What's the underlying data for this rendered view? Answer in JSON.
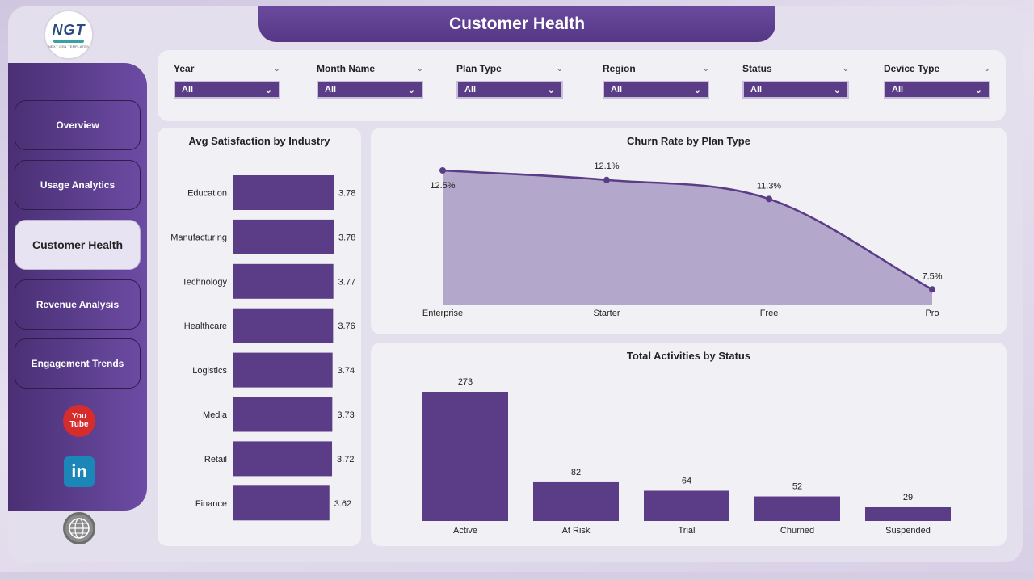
{
  "header": {
    "title": "Customer Health",
    "logo_text": "NGT",
    "logo_sub": "NEXT GEN TEMPLATES"
  },
  "sidebar": {
    "items": [
      {
        "label": "Overview",
        "active": false
      },
      {
        "label": "Usage Analytics",
        "active": false
      },
      {
        "label": "Customer Health",
        "active": true
      },
      {
        "label": "Revenue Analysis",
        "active": false
      },
      {
        "label": "Engagement Trends",
        "active": false
      }
    ],
    "social": [
      "youtube-icon",
      "linkedin-icon",
      "web-icon"
    ],
    "youtube_text_1": "You",
    "youtube_text_2": "Tube",
    "linkedin_text": "in"
  },
  "filters": [
    {
      "label": "Year",
      "value": "All"
    },
    {
      "label": "Month Name",
      "value": "All"
    },
    {
      "label": "Plan Type",
      "value": "All"
    },
    {
      "label": "Region",
      "value": "All"
    },
    {
      "label": "Status",
      "value": "All"
    },
    {
      "label": "Device Type",
      "value": "All"
    }
  ],
  "colors": {
    "accent": "#5a3d86",
    "area_fill": "#b3a7cb",
    "line": "#5a3d86"
  },
  "chart_data": [
    {
      "type": "bar",
      "orientation": "horizontal",
      "title": "Avg Satisfaction by Industry",
      "categories": [
        "Education",
        "Manufacturing",
        "Technology",
        "Healthcare",
        "Logistics",
        "Media",
        "Retail",
        "Finance"
      ],
      "values": [
        3.78,
        3.78,
        3.77,
        3.76,
        3.74,
        3.73,
        3.72,
        3.62
      ],
      "value_labels": [
        "3.78",
        "3.78",
        "3.77",
        "3.76",
        "3.74",
        "3.73",
        "3.72",
        "3.62"
      ]
    },
    {
      "type": "area",
      "title": "Churn Rate by Plan Type",
      "categories": [
        "Enterprise",
        "Starter",
        "Free",
        "Pro"
      ],
      "values": [
        12.5,
        12.1,
        11.3,
        7.5
      ],
      "value_labels": [
        "12.5%",
        "12.1%",
        "11.3%",
        "7.5%"
      ]
    },
    {
      "type": "bar",
      "title": "Total Activities by Status",
      "categories": [
        "Active",
        "At Risk",
        "Trial",
        "Churned",
        "Suspended"
      ],
      "values": [
        273,
        82,
        64,
        52,
        29
      ],
      "value_labels": [
        "273",
        "82",
        "64",
        "52",
        "29"
      ]
    }
  ]
}
